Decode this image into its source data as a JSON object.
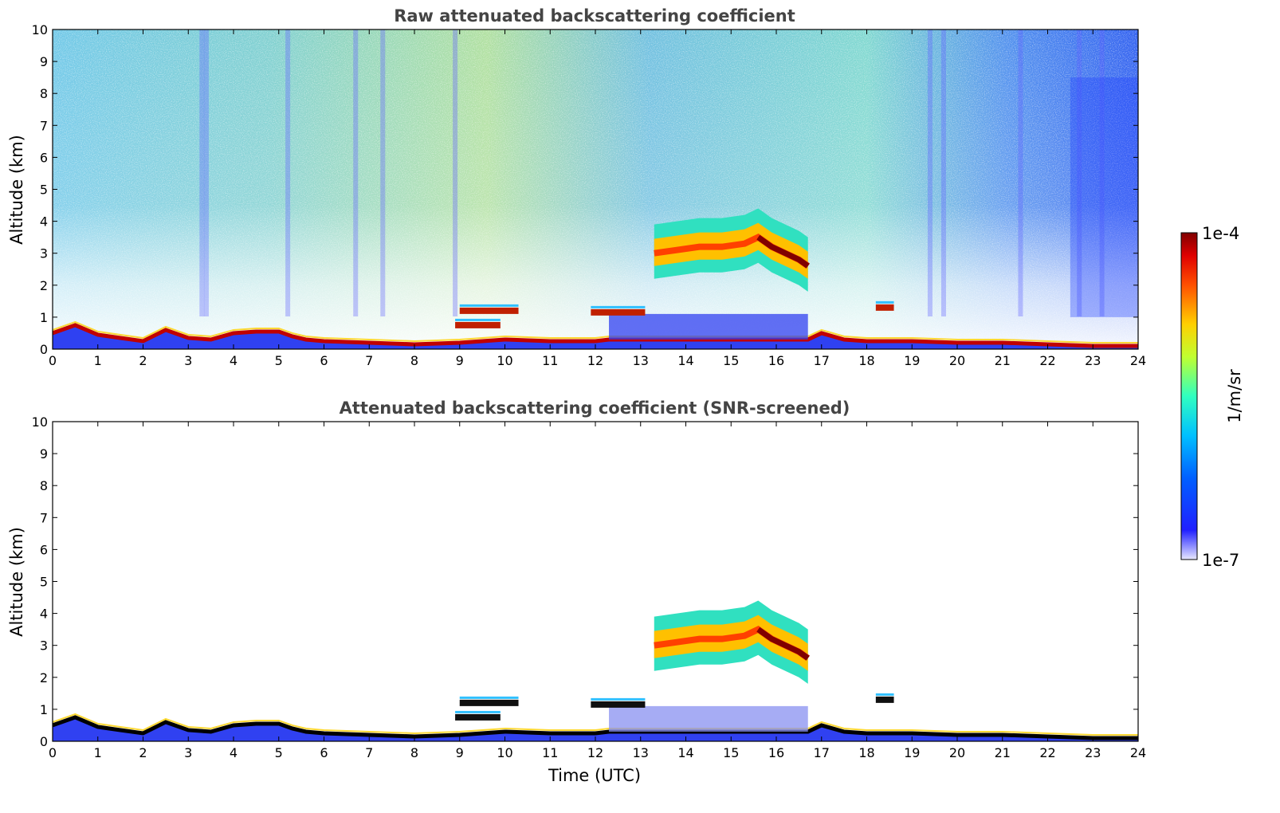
{
  "chart_data": [
    {
      "type": "heatmap",
      "title": "Raw attenuated backscattering coefficient",
      "ylabel": "Altitude (km)",
      "xlabel": "",
      "xlim": [
        0,
        24
      ],
      "ylim": [
        0,
        10
      ],
      "xticks": [
        "0",
        "1",
        "2",
        "3",
        "4",
        "5",
        "6",
        "7",
        "8",
        "9",
        "10",
        "11",
        "12",
        "13",
        "14",
        "15",
        "16",
        "17",
        "18",
        "19",
        "20",
        "21",
        "22",
        "23",
        "24"
      ],
      "yticks": [
        "0",
        "1",
        "2",
        "3",
        "4",
        "5",
        "6",
        "7",
        "8",
        "9",
        "10"
      ],
      "features": {
        "boundary_layer_top_km": [
          [
            0.0,
            0.5
          ],
          [
            0.5,
            0.75
          ],
          [
            1.0,
            0.45
          ],
          [
            1.5,
            0.35
          ],
          [
            2.0,
            0.25
          ],
          [
            2.5,
            0.6
          ],
          [
            3.0,
            0.35
          ],
          [
            3.5,
            0.3
          ],
          [
            4.0,
            0.5
          ],
          [
            4.5,
            0.55
          ],
          [
            5.0,
            0.55
          ],
          [
            5.3,
            0.4
          ],
          [
            5.6,
            0.3
          ],
          [
            6.0,
            0.25
          ],
          [
            7.0,
            0.2
          ],
          [
            8.0,
            0.15
          ],
          [
            9.0,
            0.2
          ],
          [
            10.0,
            0.3
          ],
          [
            11.0,
            0.25
          ],
          [
            12.0,
            0.25
          ],
          [
            12.3,
            0.3
          ],
          [
            13.0,
            0.3
          ],
          [
            14.0,
            0.3
          ],
          [
            15.0,
            0.3
          ],
          [
            16.0,
            0.3
          ],
          [
            16.7,
            0.3
          ],
          [
            17.0,
            0.5
          ],
          [
            17.5,
            0.3
          ],
          [
            18.0,
            0.25
          ],
          [
            19.0,
            0.25
          ],
          [
            20.0,
            0.2
          ],
          [
            21.0,
            0.2
          ],
          [
            22.0,
            0.15
          ],
          [
            23.0,
            0.1
          ],
          [
            24.0,
            0.1
          ]
        ],
        "elevated_layers": [
          {
            "t0": 8.9,
            "t1": 9.9,
            "z": 0.75
          },
          {
            "t0": 9.0,
            "t1": 10.3,
            "z": 1.2
          },
          {
            "t0": 11.9,
            "t1": 13.1,
            "z": 1.15
          },
          {
            "t0": 18.2,
            "t1": 18.6,
            "z": 1.3
          }
        ],
        "mid_level_cloud": [
          [
            13.3,
            3.0
          ],
          [
            13.8,
            3.1
          ],
          [
            14.3,
            3.2
          ],
          [
            14.8,
            3.2
          ],
          [
            15.3,
            3.3
          ],
          [
            15.6,
            3.5
          ],
          [
            15.9,
            3.2
          ],
          [
            16.2,
            3.0
          ],
          [
            16.5,
            2.8
          ],
          [
            16.7,
            2.6
          ]
        ]
      }
    },
    {
      "type": "heatmap",
      "title": "Attenuated backscattering coefficient (SNR-screened)",
      "ylabel": "Altitude (km)",
      "xlabel": "Time (UTC)",
      "xlim": [
        0,
        24
      ],
      "ylim": [
        0,
        10
      ],
      "xticks": [
        "0",
        "1",
        "2",
        "3",
        "4",
        "5",
        "6",
        "7",
        "8",
        "9",
        "10",
        "11",
        "12",
        "13",
        "14",
        "15",
        "16",
        "17",
        "18",
        "19",
        "20",
        "21",
        "22",
        "23",
        "24"
      ],
      "yticks": [
        "0",
        "1",
        "2",
        "3",
        "4",
        "5",
        "6",
        "7",
        "8",
        "9",
        "10"
      ]
    }
  ],
  "colorbar": {
    "label": "1/m/sr",
    "max_label": "1e-4",
    "min_label": "1e-7",
    "scale": "log",
    "range": [
      1e-07,
      0.0001
    ],
    "colormap": "jet"
  }
}
